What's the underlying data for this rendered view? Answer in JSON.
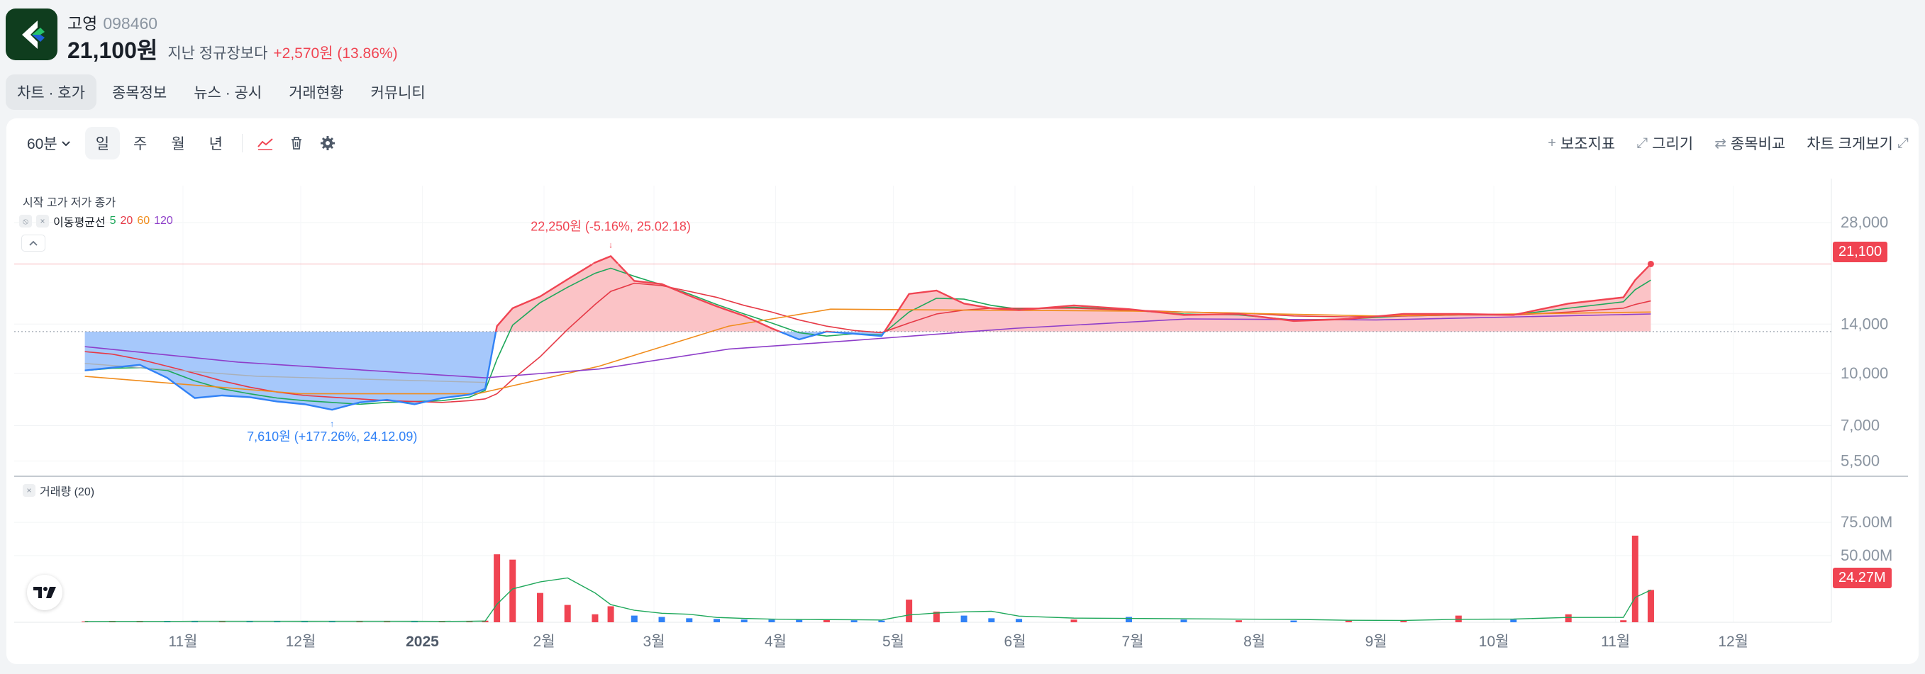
{
  "header": {
    "name": "고영",
    "code": "098460",
    "price": "21,100원",
    "compare_label": "지난 정규장보다",
    "change": "+2,570원 (13.86%)"
  },
  "tabs": [
    "차트 · 호가",
    "종목정보",
    "뉴스 · 공시",
    "거래현황",
    "커뮤니티"
  ],
  "toolbar": {
    "interval": "60분",
    "periods": [
      "일",
      "주",
      "월",
      "년"
    ],
    "active_period": "일",
    "right_buttons": [
      "보조지표",
      "그리기",
      "종목비교",
      "차트 크게보기"
    ]
  },
  "legend": {
    "ohlc": "시작 고가 저가 종가",
    "ma_label": "이동평균선",
    "ma_periods": [
      "5",
      "20",
      "60",
      "120"
    ],
    "volume": "거래량 (20)"
  },
  "annotations": {
    "high": "22,250원 (-5.16%, 25.02.18)",
    "low": "7,610원 (+177.26%, 24.12.09)"
  },
  "price_tags": {
    "last": "21,100",
    "volume": "24.27M"
  },
  "colors": {
    "up": "#f04452",
    "down": "#3182f6",
    "ma5": "#1fa85b",
    "ma20": "#e63946",
    "ma60": "#f08c1c",
    "ma120": "#8e3ec9",
    "area_up": "#fbc3c6",
    "area_down": "#a6c8fb"
  },
  "chart_data": {
    "type": "line",
    "scale": "log",
    "y_ticks": [
      "28,000",
      "14,000",
      "10,000",
      "7,000",
      "5,500"
    ],
    "y_tick_values": [
      28000,
      14000,
      10000,
      7000,
      5500
    ],
    "volume_ticks": [
      "75.00M",
      "50.00M"
    ],
    "volume_tick_values": [
      75,
      50
    ],
    "x_labels": [
      "11월",
      "12월",
      "2025",
      "2월",
      "3월",
      "4월",
      "5월",
      "6월",
      "7월",
      "8월",
      "9월",
      "10월",
      "11월",
      "12월"
    ],
    "baseline": 13300,
    "price": {
      "x": [
        "2024-10-07",
        "2024-10-14",
        "2024-10-21",
        "2024-10-28",
        "2024-11-04",
        "2024-11-11",
        "2024-11-18",
        "2024-11-25",
        "2024-12-02",
        "2024-12-09",
        "2024-12-16",
        "2024-12-23",
        "2024-12-30",
        "2025-01-06",
        "2025-01-13",
        "2025-01-17",
        "2025-01-20",
        "2025-01-24",
        "2025-01-31",
        "2025-02-07",
        "2025-02-14",
        "2025-02-18",
        "2025-02-24",
        "2025-03-03",
        "2025-03-10",
        "2025-03-17",
        "2025-03-24",
        "2025-03-31",
        "2025-04-07",
        "2025-04-14",
        "2025-04-21",
        "2025-04-28",
        "2025-05-05",
        "2025-05-12",
        "2025-05-19",
        "2025-05-26",
        "2025-06-02",
        "2025-06-16",
        "2025-06-30",
        "2025-07-14",
        "2025-07-28",
        "2025-08-11",
        "2025-08-25",
        "2025-09-08",
        "2025-09-22",
        "2025-10-06",
        "2025-10-20",
        "2025-11-03",
        "2025-11-06",
        "2025-11-10"
      ],
      "y": [
        10200,
        10400,
        10600,
        9700,
        8450,
        8600,
        8500,
        8250,
        8100,
        7800,
        8200,
        8350,
        8100,
        8450,
        8650,
        9000,
        13800,
        15600,
        16900,
        19000,
        21300,
        22250,
        18800,
        18400,
        17000,
        15800,
        14800,
        13600,
        12600,
        13300,
        13100,
        12900,
        17200,
        17600,
        16100,
        15600,
        15400,
        15900,
        15500,
        14900,
        15000,
        14300,
        14500,
        15000,
        15000,
        14900,
        16100,
        16800,
        18900,
        21100
      ]
    },
    "ma": {
      "ma5": [
        10200,
        10350,
        10400,
        10200,
        9500,
        9000,
        8700,
        8450,
        8300,
        8200,
        8100,
        8200,
        8250,
        8300,
        8500,
        8900,
        11000,
        13900,
        16200,
        18000,
        19800,
        20500,
        19400,
        18300,
        17200,
        16000,
        15000,
        14100,
        13200,
        12900,
        13100,
        13000,
        15200,
        16700,
        16600,
        15900,
        15500,
        15700,
        15400,
        15000,
        14900,
        14400,
        14500,
        14800,
        14900,
        14900,
        15600,
        16300,
        17700,
        18900
      ],
      "ma20": [
        11600,
        11400,
        11000,
        10500,
        10000,
        9500,
        9100,
        8800,
        8600,
        8500,
        8400,
        8300,
        8250,
        8200,
        8300,
        8400,
        8700,
        9600,
        11200,
        13500,
        16000,
        17500,
        18500,
        18200,
        17500,
        16800,
        15900,
        15200,
        14400,
        13800,
        13400,
        13200,
        14100,
        15000,
        15400,
        15600,
        15600,
        15600,
        15400,
        15200,
        15100,
        14800,
        14700,
        14800,
        14900,
        14900,
        15200,
        15600,
        16000,
        16400
      ]
    },
    "volume": [
      0.6,
      0.8,
      0.7,
      0.6,
      0.9,
      0.8,
      0.7,
      0.6,
      0.8,
      0.9,
      0.7,
      0.6,
      0.7,
      0.8,
      1.0,
      1.2,
      51,
      47,
      22,
      13,
      6,
      12,
      5,
      4,
      3,
      2.5,
      2,
      2,
      1.8,
      2.2,
      1.5,
      1.3,
      17,
      8,
      5,
      3,
      2.5,
      2,
      4,
      2,
      1.5,
      1.3,
      1.2,
      1.4,
      5,
      2,
      6,
      1.5,
      65,
      24.27
    ]
  }
}
